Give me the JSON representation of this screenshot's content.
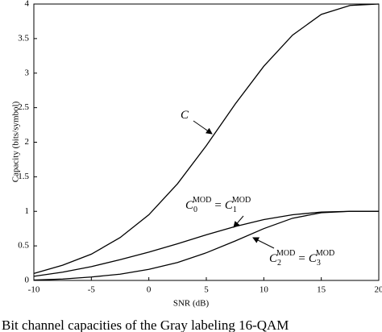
{
  "chart_data": {
    "type": "line",
    "x_label": "SNR (dB)",
    "y_label": "Capacity (bits/symbol)",
    "x": [
      -10,
      -7.5,
      -5,
      -2.5,
      0,
      2.5,
      5,
      7.5,
      10,
      12.5,
      15,
      17.5,
      20
    ],
    "series": [
      {
        "color": "#000000",
        "values": [
          0.1,
          0.22,
          0.38,
          0.62,
          0.95,
          1.4,
          1.95,
          2.55,
          3.1,
          3.55,
          3.85,
          3.98,
          4.0
        ]
      },
      {
        "color": "#000000",
        "values": [
          0.06,
          0.12,
          0.2,
          0.3,
          0.41,
          0.53,
          0.66,
          0.78,
          0.88,
          0.95,
          0.99,
          1.0,
          1.0
        ]
      },
      {
        "color": "#000000",
        "values": [
          0.005,
          0.02,
          0.05,
          0.09,
          0.16,
          0.26,
          0.4,
          0.57,
          0.75,
          0.9,
          0.98,
          1.0,
          1.0
        ]
      }
    ],
    "annotations": [
      {
        "terms": [
          {
            "base": "C"
          }
        ]
      },
      {
        "terms": [
          {
            "base": "C",
            "sub": "0",
            "sup": "MOD"
          },
          {
            "base": "C",
            "sub": "1",
            "sup": "MOD"
          }
        ],
        "op": "="
      },
      {
        "terms": [
          {
            "base": "C",
            "sub": "2",
            "sup": "MOD"
          },
          {
            "base": "C",
            "sub": "3",
            "sup": "MOD"
          }
        ],
        "op": "="
      }
    ],
    "xlim": [
      -10,
      20
    ],
    "ylim": [
      0,
      4
    ],
    "xticks": [
      -10,
      -5,
      0,
      5,
      10,
      15,
      20
    ],
    "yticks": [
      0,
      0.5,
      1,
      1.5,
      2,
      2.5,
      3,
      3.5,
      4
    ],
    "caption": "Bit channel capacities of the Gray labeling 16-QAM"
  }
}
